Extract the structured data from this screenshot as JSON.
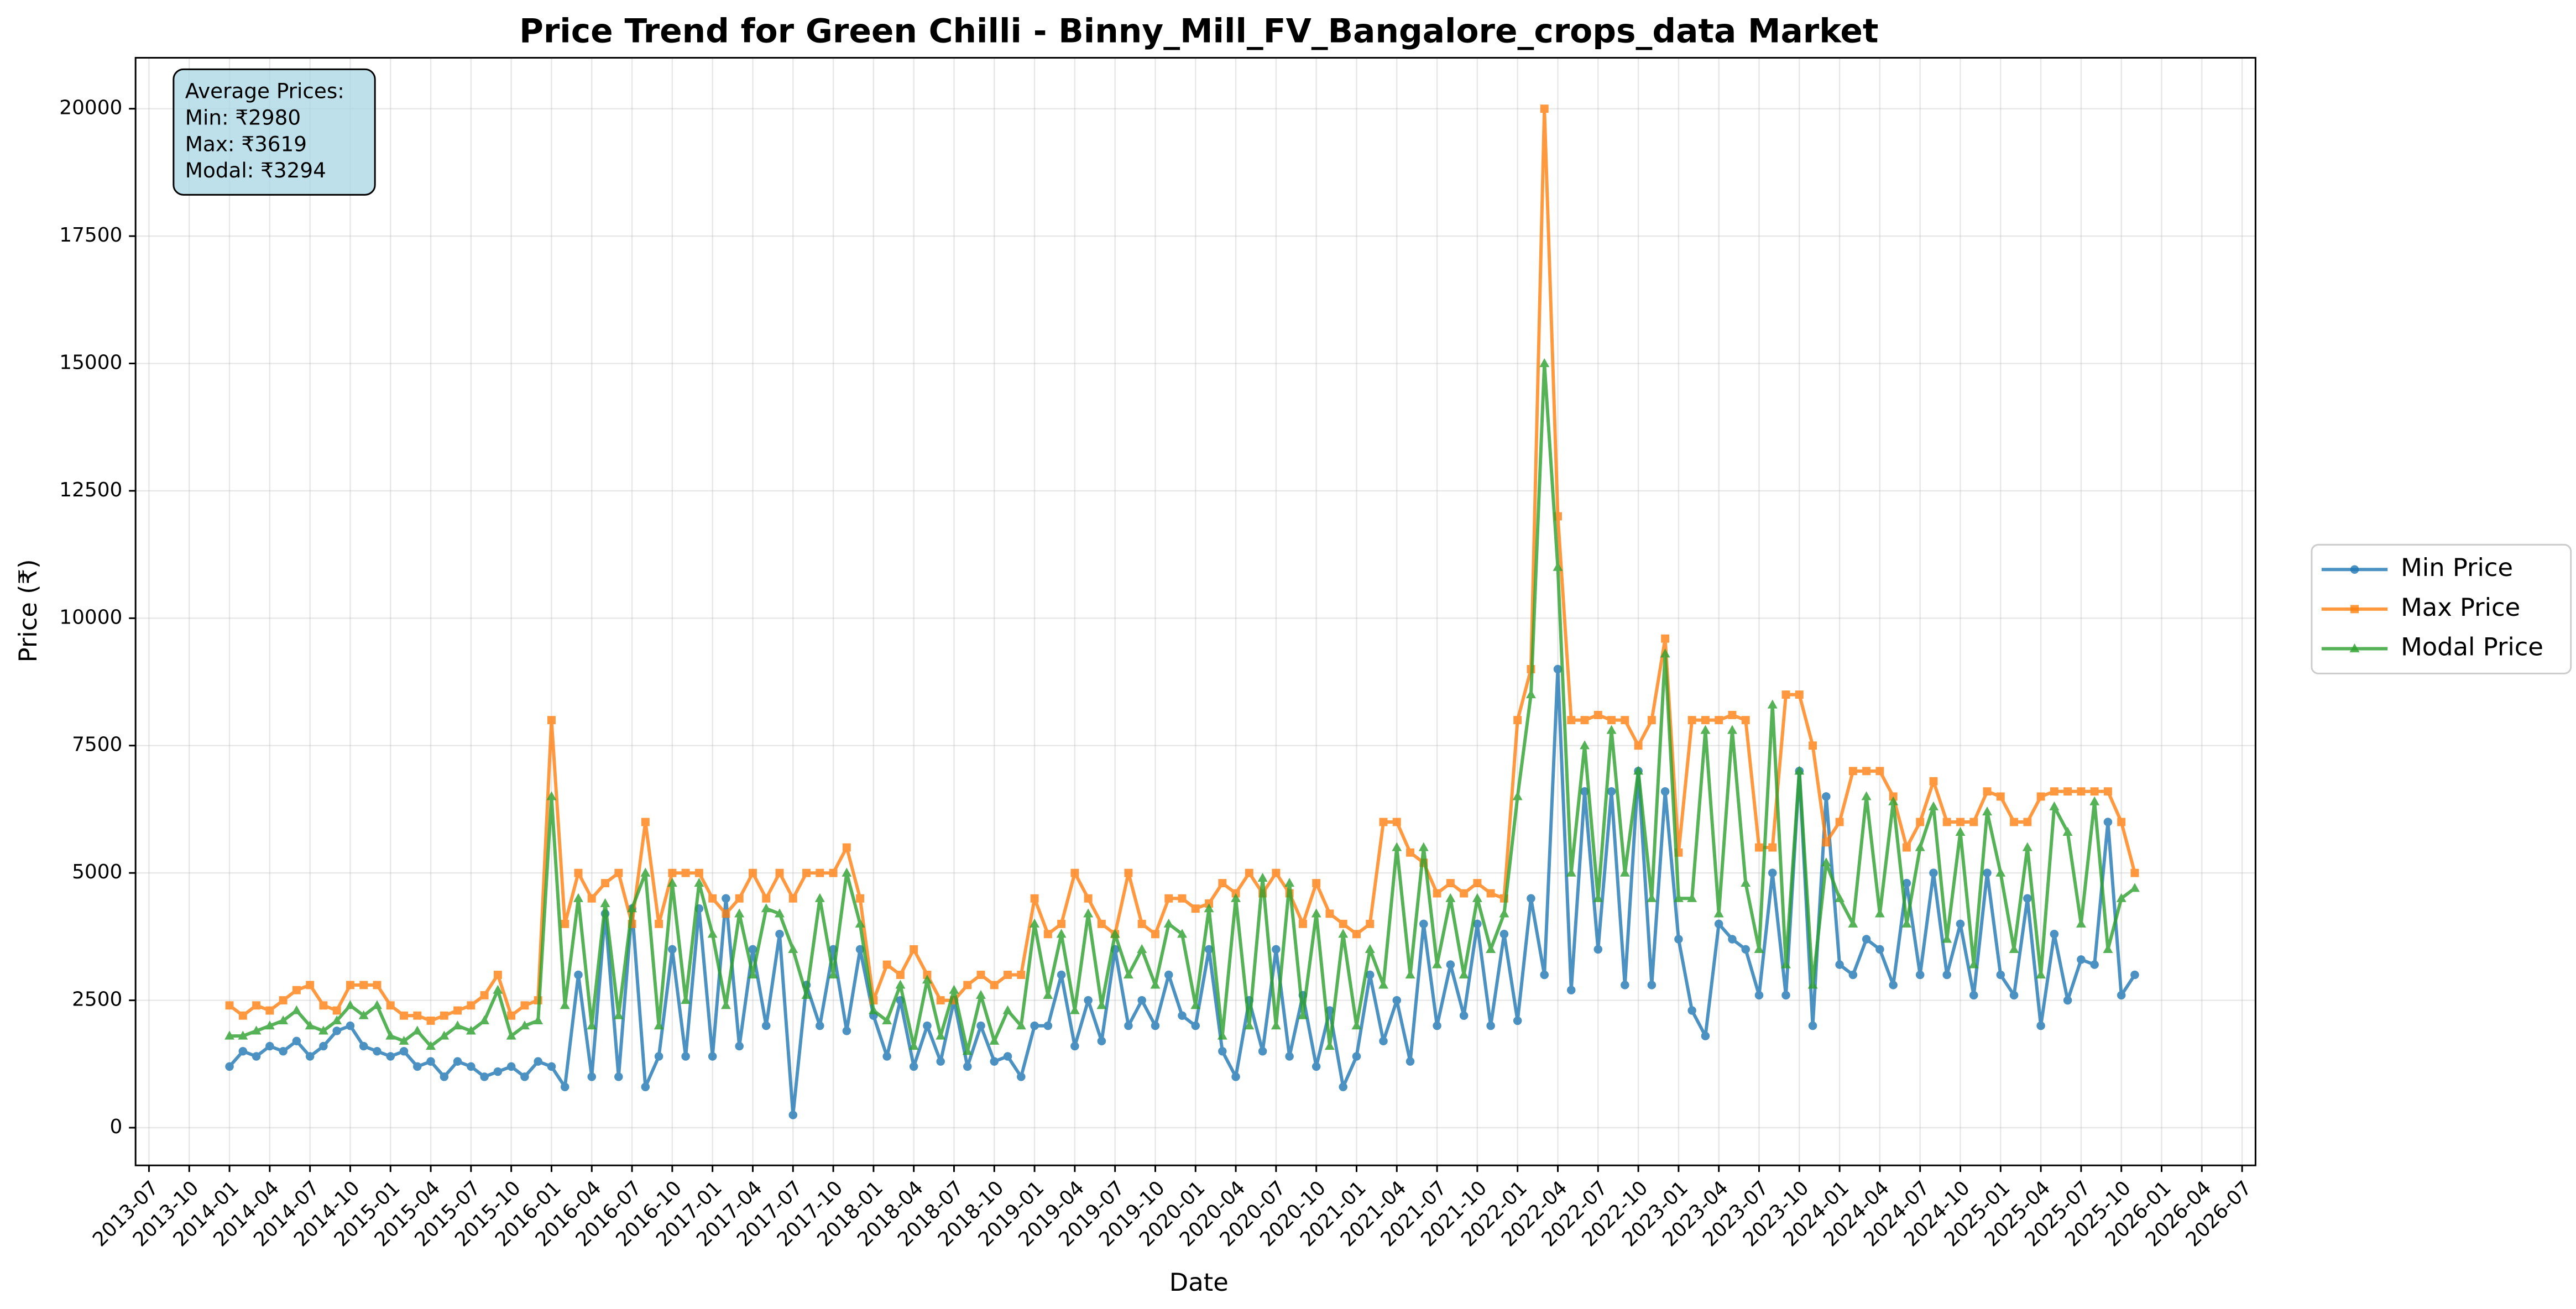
{
  "chart_data": {
    "type": "line",
    "title": "Price Trend for Green Chilli - Binny_Mill_FV_Bangalore_crops_data Market",
    "xlabel": "Date",
    "ylabel": "Price (₹)",
    "stats_box": [
      "Average Prices:",
      "Min: ₹2980",
      "Max: ₹3619",
      "Modal: ₹3294"
    ],
    "grid": true,
    "legend_loc": "right",
    "xlim": [
      "2013-06",
      "2026-08"
    ],
    "ylim": [
      -740,
      21000
    ],
    "yticks": [
      0,
      2500,
      5000,
      7500,
      10000,
      12500,
      15000,
      17500,
      20000
    ],
    "xticks": [
      "2013-07",
      "2013-10",
      "2014-01",
      "2014-04",
      "2014-07",
      "2014-10",
      "2015-01",
      "2015-04",
      "2015-07",
      "2015-10",
      "2016-01",
      "2016-04",
      "2016-07",
      "2016-10",
      "2017-01",
      "2017-04",
      "2017-07",
      "2017-10",
      "2018-01",
      "2018-04",
      "2018-07",
      "2018-10",
      "2019-01",
      "2019-04",
      "2019-07",
      "2019-10",
      "2020-01",
      "2020-04",
      "2020-07",
      "2020-10",
      "2021-01",
      "2021-04",
      "2021-07",
      "2021-10",
      "2022-01",
      "2022-04",
      "2022-07",
      "2022-10",
      "2023-01",
      "2023-04",
      "2023-07",
      "2023-10",
      "2024-01",
      "2024-04",
      "2024-07",
      "2024-10",
      "2025-01",
      "2025-04",
      "2025-07",
      "2025-10",
      "2026-01",
      "2026-04",
      "2026-07"
    ],
    "x": [
      "2014-01",
      "2014-02",
      "2014-03",
      "2014-04",
      "2014-05",
      "2014-06",
      "2014-07",
      "2014-08",
      "2014-09",
      "2014-10",
      "2014-11",
      "2014-12",
      "2015-01",
      "2015-02",
      "2015-03",
      "2015-04",
      "2015-05",
      "2015-06",
      "2015-07",
      "2015-08",
      "2015-09",
      "2015-10",
      "2015-11",
      "2015-12",
      "2016-01",
      "2016-02",
      "2016-03",
      "2016-04",
      "2016-05",
      "2016-06",
      "2016-07",
      "2016-08",
      "2016-09",
      "2016-10",
      "2016-11",
      "2016-12",
      "2017-01",
      "2017-02",
      "2017-03",
      "2017-04",
      "2017-05",
      "2017-06",
      "2017-07",
      "2017-08",
      "2017-09",
      "2017-10",
      "2017-11",
      "2017-12",
      "2018-01",
      "2018-02",
      "2018-03",
      "2018-04",
      "2018-05",
      "2018-06",
      "2018-07",
      "2018-08",
      "2018-09",
      "2018-10",
      "2018-11",
      "2018-12",
      "2019-01",
      "2019-02",
      "2019-03",
      "2019-04",
      "2019-05",
      "2019-06",
      "2019-07",
      "2019-08",
      "2019-09",
      "2019-10",
      "2019-11",
      "2019-12",
      "2020-01",
      "2020-02",
      "2020-03",
      "2020-04",
      "2020-05",
      "2020-06",
      "2020-07",
      "2020-08",
      "2020-09",
      "2020-10",
      "2020-11",
      "2020-12",
      "2021-01",
      "2021-02",
      "2021-03",
      "2021-04",
      "2021-05",
      "2021-06",
      "2021-07",
      "2021-08",
      "2021-09",
      "2021-10",
      "2021-11",
      "2021-12",
      "2022-01",
      "2022-02",
      "2022-03",
      "2022-04",
      "2022-05",
      "2022-06",
      "2022-07",
      "2022-08",
      "2022-09",
      "2022-10",
      "2022-11",
      "2022-12",
      "2023-01",
      "2023-02",
      "2023-03",
      "2023-04",
      "2023-05",
      "2023-06",
      "2023-07",
      "2023-08",
      "2023-09",
      "2023-10",
      "2023-11",
      "2023-12",
      "2024-01",
      "2024-02",
      "2024-03",
      "2024-04",
      "2024-05",
      "2024-06",
      "2024-07",
      "2024-08",
      "2024-09",
      "2024-10",
      "2024-11",
      "2024-12",
      "2025-01",
      "2025-02",
      "2025-03",
      "2025-04",
      "2025-05",
      "2025-06",
      "2025-07",
      "2025-08",
      "2025-09",
      "2025-10",
      "2025-11"
    ],
    "series": [
      {
        "name": "Min Price",
        "color": "#1f77b4",
        "marker": "circle",
        "values": [
          1200,
          1500,
          1400,
          1600,
          1500,
          1700,
          1400,
          1600,
          1900,
          2000,
          1600,
          1500,
          1400,
          1500,
          1200,
          1300,
          1000,
          1300,
          1200,
          1000,
          1100,
          1200,
          1000,
          1300,
          1200,
          800,
          3000,
          1000,
          4200,
          1000,
          4300,
          800,
          1400,
          3500,
          1400,
          4300,
          1400,
          4500,
          1600,
          3500,
          2000,
          3800,
          250,
          2800,
          2000,
          3500,
          1900,
          3500,
          2200,
          1400,
          2500,
          1200,
          2000,
          1300,
          2500,
          1200,
          2000,
          1300,
          1400,
          1000,
          2000,
          2000,
          3000,
          1600,
          2500,
          1700,
          3500,
          2000,
          2500,
          2000,
          3000,
          2200,
          2000,
          3500,
          1500,
          1000,
          2500,
          1500,
          3500,
          1400,
          2600,
          1200,
          2300,
          800,
          1400,
          3000,
          1700,
          2500,
          1300,
          4000,
          2000,
          3200,
          2200,
          4000,
          2000,
          3800,
          2100,
          4500,
          3000,
          9000,
          2700,
          6600,
          3500,
          6600,
          2800,
          7000,
          2800,
          6600,
          3700,
          2300,
          1800,
          4000,
          3700,
          3500,
          2600,
          5000,
          2600,
          7000,
          2000,
          6500,
          3200,
          3000,
          3700,
          3500,
          2800,
          4800,
          3000,
          5000,
          3000,
          4000,
          2600,
          5000,
          3000,
          2600,
          4500,
          2000,
          3800,
          2500,
          3300,
          3200,
          6000,
          2600,
          3000
        ]
      },
      {
        "name": "Max Price",
        "color": "#ff7f0e",
        "marker": "square",
        "values": [
          2400,
          2200,
          2400,
          2300,
          2500,
          2700,
          2800,
          2400,
          2300,
          2800,
          2800,
          2800,
          2400,
          2200,
          2200,
          2100,
          2200,
          2300,
          2400,
          2600,
          3000,
          2200,
          2400,
          2500,
          8000,
          4000,
          5000,
          4500,
          4800,
          5000,
          4000,
          6000,
          4000,
          5000,
          5000,
          5000,
          4500,
          4200,
          4500,
          5000,
          4500,
          5000,
          4500,
          5000,
          5000,
          5000,
          5500,
          4500,
          2500,
          3200,
          3000,
          3500,
          3000,
          2500,
          2500,
          2800,
          3000,
          2800,
          3000,
          3000,
          4500,
          3800,
          4000,
          5000,
          4500,
          4000,
          3800,
          5000,
          4000,
          3800,
          4500,
          4500,
          4300,
          4400,
          4800,
          4600,
          5000,
          4600,
          5000,
          4600,
          4000,
          4800,
          4200,
          4000,
          3800,
          4000,
          6000,
          6000,
          5400,
          5200,
          4600,
          4800,
          4600,
          4800,
          4600,
          4500,
          8000,
          9000,
          20000,
          12000,
          8000,
          8000,
          8100,
          8000,
          8000,
          7500,
          8000,
          9600,
          5400,
          8000,
          8000,
          8000,
          8100,
          8000,
          5500,
          5500,
          8500,
          8500,
          7500,
          5600,
          6000,
          7000,
          7000,
          7000,
          6500,
          5500,
          6000,
          6800,
          6000,
          6000,
          6000,
          6600,
          6500,
          6000,
          6000,
          6500,
          6600,
          6600,
          6600,
          6600,
          6600,
          6000,
          5000
        ]
      },
      {
        "name": "Modal Price",
        "color": "#2ca02c",
        "marker": "triangle",
        "values": [
          1800,
          1800,
          1900,
          2000,
          2100,
          2300,
          2000,
          1900,
          2100,
          2400,
          2200,
          2400,
          1800,
          1700,
          1900,
          1600,
          1800,
          2000,
          1900,
          2100,
          2700,
          1800,
          2000,
          2100,
          6500,
          2400,
          4500,
          2000,
          4400,
          2200,
          4300,
          5000,
          2000,
          4800,
          2500,
          4800,
          3800,
          2400,
          4200,
          3000,
          4300,
          4200,
          3500,
          2600,
          4500,
          3000,
          5000,
          4000,
          2300,
          2100,
          2800,
          1600,
          2900,
          1800,
          2700,
          1500,
          2600,
          1700,
          2300,
          2000,
          4000,
          2600,
          3800,
          2300,
          4200,
          2400,
          3800,
          3000,
          3500,
          2800,
          4000,
          3800,
          2400,
          4300,
          1800,
          4500,
          2000,
          4900,
          2000,
          4800,
          2200,
          4200,
          1600,
          3800,
          2000,
          3500,
          2800,
          5500,
          3000,
          5500,
          3200,
          4500,
          3000,
          4500,
          3500,
          4200,
          6500,
          8500,
          15000,
          11000,
          5000,
          7500,
          4500,
          7800,
          5000,
          7000,
          4500,
          9300,
          4500,
          4500,
          7800,
          4200,
          7800,
          4800,
          3500,
          8300,
          3200,
          7000,
          2800,
          5200,
          4500,
          4000,
          6500,
          4200,
          6400,
          4000,
          5500,
          6300,
          3700,
          5800,
          3200,
          6200,
          5000,
          3500,
          5500,
          3000,
          6300,
          5800,
          4000,
          6400,
          3500,
          4500,
          4700
        ]
      }
    ]
  }
}
